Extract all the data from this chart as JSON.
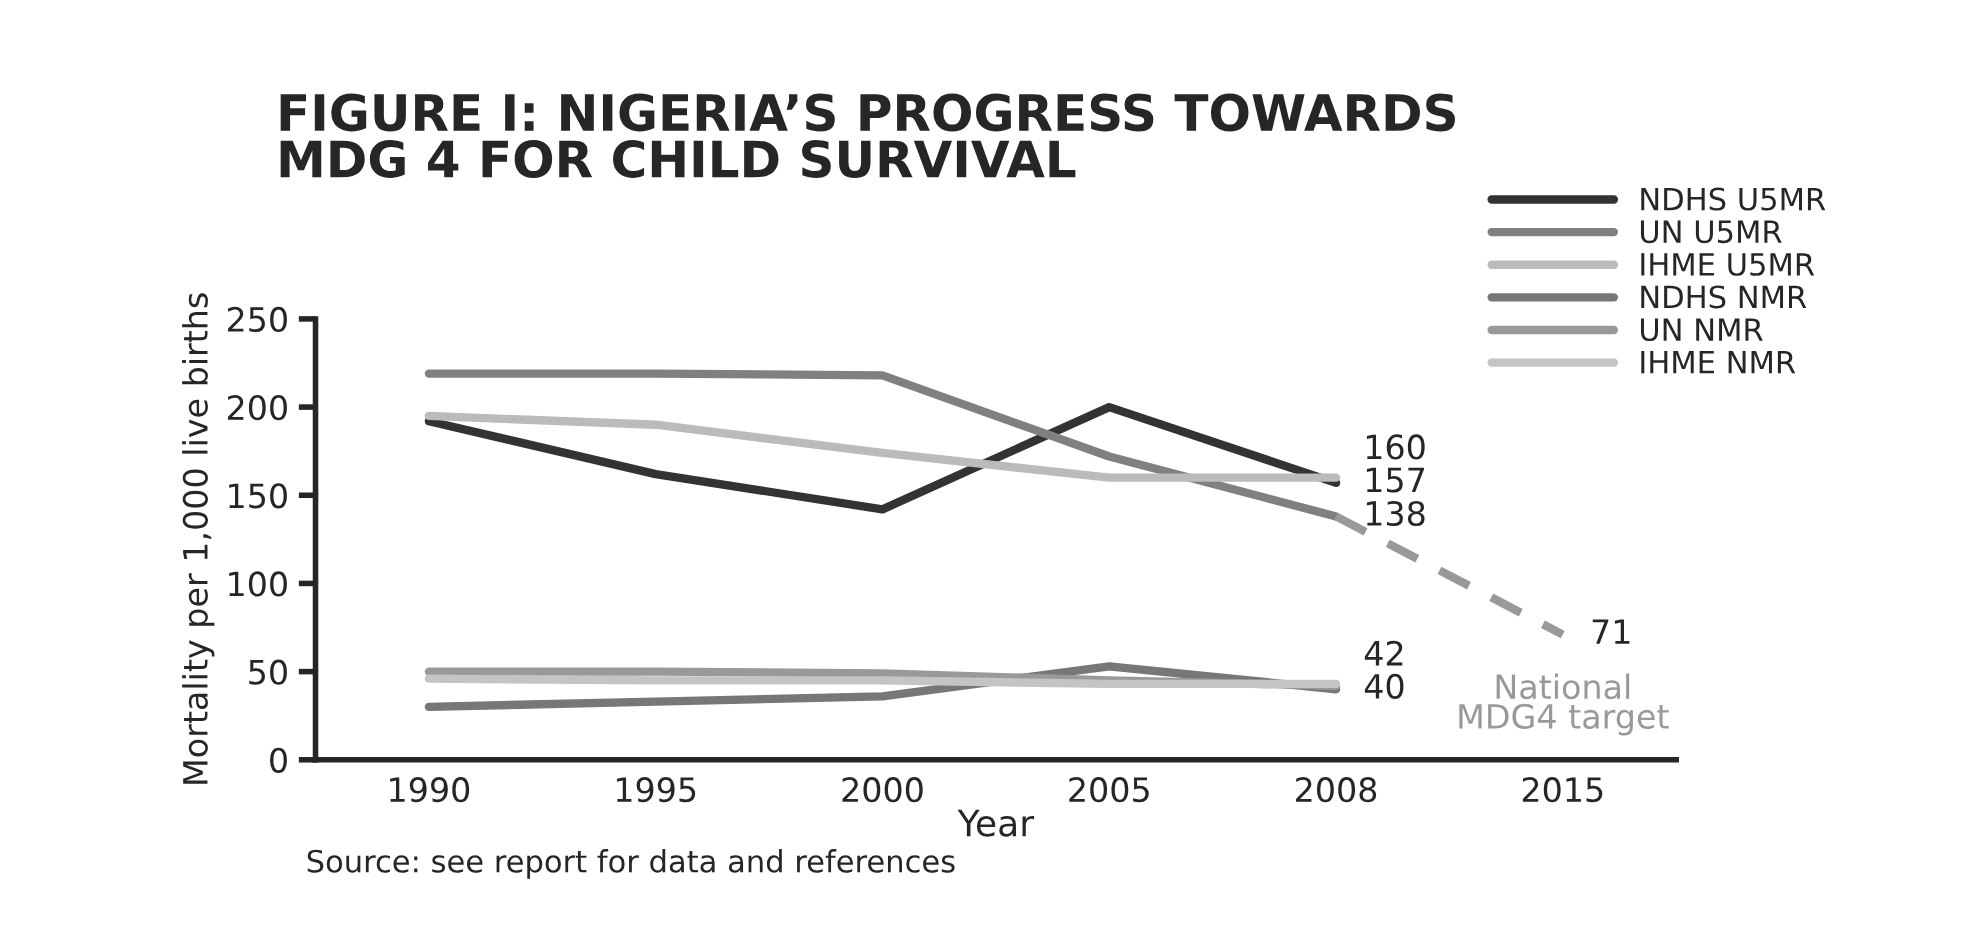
{
  "chart_data": {
    "type": "line",
    "title": "FIGURE I: NIGERIA’S PROGRESS TOWARDS\nMDG 4 FOR CHILD SURVIVAL",
    "xlabel": "Year",
    "ylabel": "Mortality per 1,000 live births",
    "categories": [
      "1990",
      "1995",
      "2000",
      "2005",
      "2008",
      "2015"
    ],
    "series": [
      {
        "name": "NDHS U5MR",
        "color": "#333333",
        "values": [
          192,
          162,
          142,
          200,
          157,
          null
        ],
        "value_labels": [
          null,
          null,
          null,
          null,
          "157",
          null
        ]
      },
      {
        "name": "UN U5MR",
        "color": "#808080",
        "values": [
          219,
          219,
          218,
          172,
          138,
          null
        ],
        "value_labels": [
          null,
          null,
          null,
          null,
          "138",
          null
        ]
      },
      {
        "name": "IHME U5MR",
        "color": "#bbbbbb",
        "values": [
          195,
          190,
          174,
          160,
          160,
          null
        ],
        "value_labels": [
          null,
          null,
          null,
          null,
          "160",
          null
        ]
      },
      {
        "name": "NDHS NMR",
        "color": "#777777",
        "values": [
          30,
          33,
          36,
          53,
          40,
          null
        ],
        "value_labels": [
          null,
          null,
          null,
          null,
          "40",
          null
        ]
      },
      {
        "name": "UN NMR",
        "color": "#999999",
        "values": [
          50,
          50,
          49,
          45,
          42,
          null
        ],
        "value_labels": [
          null,
          null,
          null,
          null,
          "42",
          null
        ]
      },
      {
        "name": "IHME NMR",
        "color": "#c4c4c4",
        "values": [
          46,
          45,
          45,
          43,
          43,
          null
        ]
      },
      {
        "color": "#999999",
        "line_style": "dashed",
        "values": [
          null,
          null,
          null,
          null,
          138,
          71
        ],
        "value_labels": [
          null,
          null,
          null,
          null,
          null,
          "71"
        ]
      }
    ],
    "ylim": [
      0,
      250
    ],
    "yticks": [
      0,
      50,
      100,
      150,
      200,
      250
    ],
    "grid": false,
    "legend": "top right",
    "annotations": [
      {
        "text": "National\nMDG4 target",
        "x": "2015",
        "y": 71
      },
      "Source: see report for data and references"
    ]
  }
}
